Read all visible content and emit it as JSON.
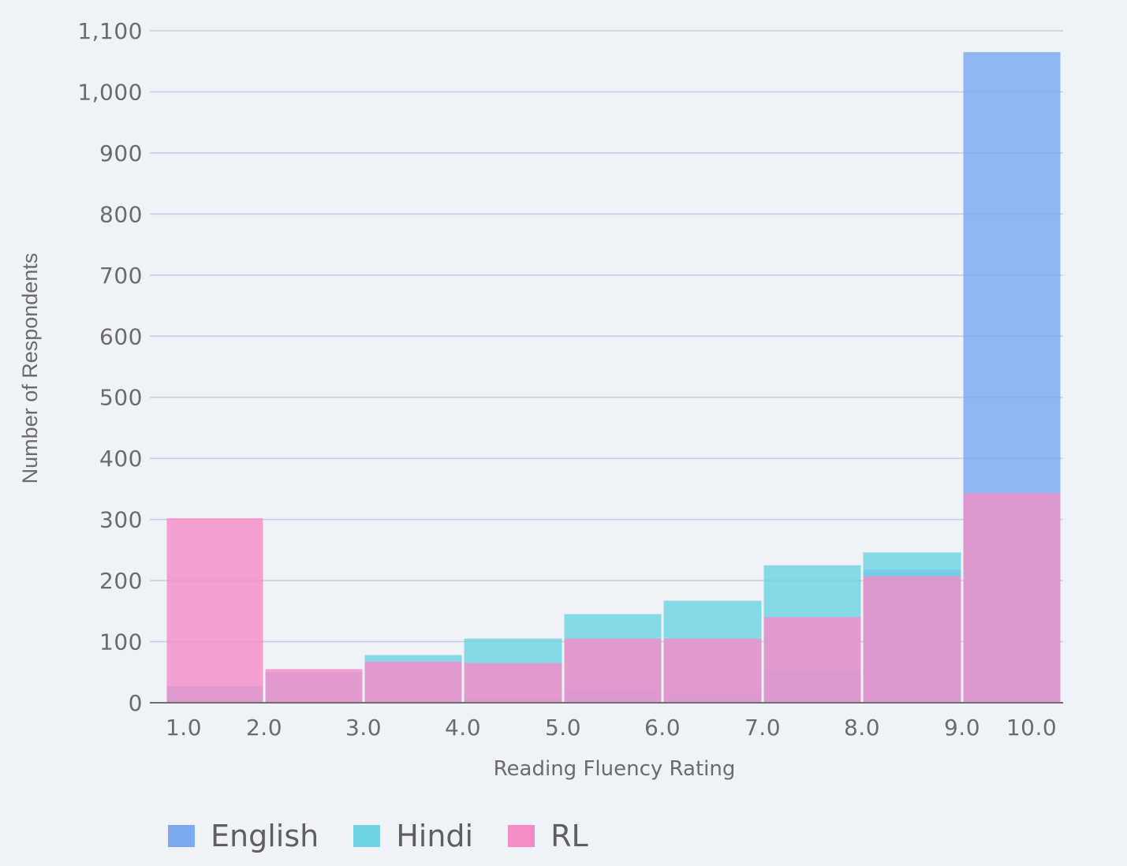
{
  "chart_data": {
    "type": "bar",
    "xlabel": "Reading Fluency Rating",
    "ylabel": "Number of Respondents",
    "ylim": [
      0,
      1100
    ],
    "yticks": [
      "0",
      "100",
      "200",
      "300",
      "400",
      "500",
      "600",
      "700",
      "800",
      "900",
      "1,000",
      "1,100"
    ],
    "ytick_values": [
      0,
      100,
      200,
      300,
      400,
      500,
      600,
      700,
      800,
      900,
      1000,
      1100
    ],
    "xtick_labels": [
      "1.0",
      "2.0",
      "3.0",
      "4.0",
      "5.0",
      "6.0",
      "7.0",
      "8.0",
      "9.0",
      "10.0"
    ],
    "bins": [
      "1.0-2.0",
      "2.0-3.0",
      "3.0-4.0",
      "4.0-5.0",
      "5.0-6.0",
      "6.0-7.0",
      "7.0-8.0",
      "8.0-9.0",
      "9.0-10.0"
    ],
    "grid": true,
    "legend_position": "bottom-left",
    "series": [
      {
        "name": "English",
        "color": "#7baaf0",
        "values": [
          5,
          2,
          3,
          8,
          20,
          17,
          52,
          218,
          1065
        ]
      },
      {
        "name": "Hindi",
        "color": "#6fd3e2",
        "values": [
          27,
          50,
          78,
          105,
          145,
          167,
          225,
          246,
          340
        ]
      },
      {
        "name": "RL",
        "color": "#f48cc8",
        "values": [
          302,
          55,
          67,
          65,
          105,
          105,
          140,
          207,
          343
        ]
      }
    ]
  }
}
